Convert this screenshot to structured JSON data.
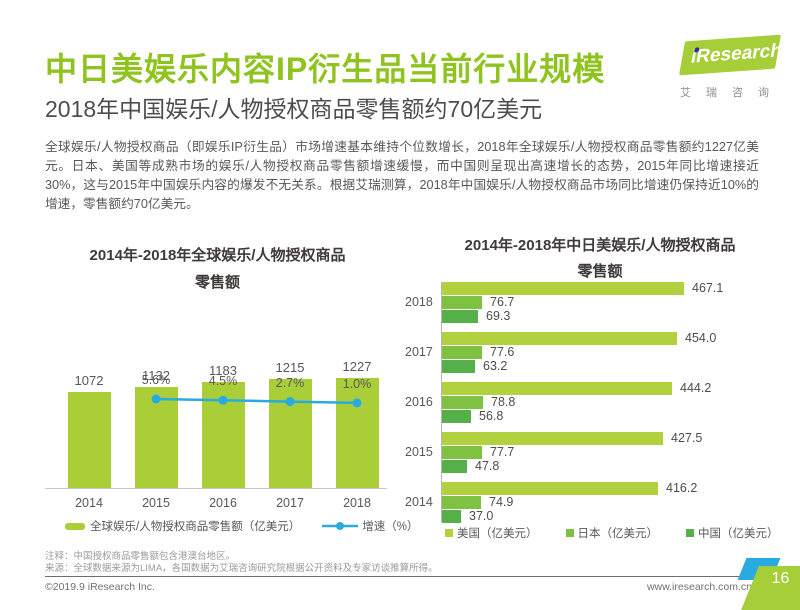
{
  "header": {
    "title": "中日美娱乐内容IP衍生品当前行业规模",
    "subtitle": "2018年中国娱乐/人物授权商品零售额约70亿美元",
    "body": "全球娱乐/人物授权商品（即娱乐IP衍生品）市场增速基本维持个位数增长，2018年全球娱乐/人物授权商品零售额约1227亿美元。日本、美国等成熟市场的娱乐/人物授权商品零售额增速缓慢，而中国则呈现出高速增长的态势，2015年同比增速接近30%，这与2015年中国娱乐内容的爆发不无关系。根据艾瑞测算，2018年中国娱乐/人物授权商品市场同比增速仍保持近10%的增速，零售额约70亿美元。"
  },
  "logo": {
    "brand": "iResearch",
    "brand_cn": "艾瑞咨询"
  },
  "colors": {
    "accent_green": "#8fc31f",
    "bar_green": "#a9ce38",
    "line_blue": "#29abe2",
    "japan_green": "#7fc241",
    "china_green": "#55b04a"
  },
  "chart_data": [
    {
      "type": "bar",
      "title": "2014年-2018年全球娱乐/人物授权商品零售额",
      "title_line1": "2014年-2018年全球娱乐/人物授权商品",
      "title_line2": "零售额",
      "categories": [
        "2014",
        "2015",
        "2016",
        "2017",
        "2018"
      ],
      "series": [
        {
          "name": "全球娱乐/人物授权商品零售额（亿美元）",
          "type": "bar",
          "color": "#a9ce38",
          "values": [
            1072,
            1132,
            1183,
            1215,
            1227
          ]
        },
        {
          "name": "增速（%）",
          "type": "line",
          "color": "#29abe2",
          "values": [
            null,
            5.6,
            4.5,
            2.7,
            1.0
          ],
          "labels": [
            "5.6%",
            "4.5%",
            "2.7%",
            "1.0%"
          ]
        }
      ],
      "ylim": [
        0,
        1350
      ],
      "grid": false,
      "legend_position": "bottom"
    },
    {
      "type": "bar",
      "orientation": "horizontal",
      "title": "2014年-2018年中日美娱乐/人物授权商品零售额",
      "title_line1": "2014年-2018年中日美娱乐/人物授权商品",
      "title_line2": "零售额",
      "categories": [
        "2018",
        "2017",
        "2016",
        "2015",
        "2014"
      ],
      "series": [
        {
          "name": "美国（亿美元）",
          "color": "#b1d23e",
          "values": [
            467.1,
            454.0,
            444.2,
            427.5,
            416.2
          ]
        },
        {
          "name": "日本（亿美元）",
          "color": "#7fc241",
          "values": [
            76.7,
            77.6,
            78.8,
            77.7,
            74.9
          ]
        },
        {
          "name": "中国（亿美元）",
          "color": "#55b04a",
          "values": [
            69.3,
            63.2,
            56.8,
            47.8,
            37.0
          ]
        }
      ],
      "xlim": [
        0,
        500
      ],
      "grid": false,
      "legend_position": "bottom"
    }
  ],
  "footer": {
    "note1": "注释：中国授权商品零售额包含港澳台地区。",
    "note2": "来源：全球数据来源为LIMA，各国数据为艾瑞咨询研究院根据公开资料及专家访谈推算所得。",
    "copyright": "©2019.9 iResearch Inc.",
    "website": "www.iresearch.com.cn",
    "page_number": "16"
  }
}
